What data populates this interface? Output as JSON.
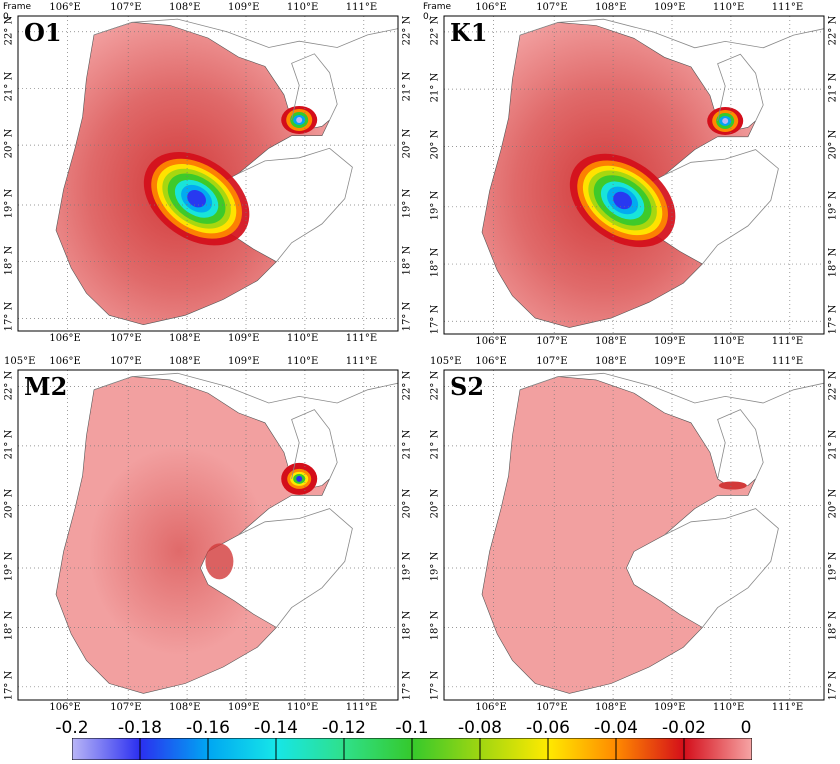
{
  "frame_label": "Frame 0,",
  "lon_labels": [
    "105°E",
    "106°E",
    "107°E",
    "108°E",
    "109°E",
    "110°E",
    "111°E"
  ],
  "lat_labels": [
    "17° N",
    "18° N",
    "19° N",
    "20° N",
    "21° N",
    "22° N"
  ],
  "panels": [
    {
      "title": "O1",
      "frame": true,
      "top_first_lon": false,
      "magnitude": "high"
    },
    {
      "title": "K1",
      "frame": true,
      "top_first_lon": false,
      "magnitude": "high"
    },
    {
      "title": "M2",
      "frame": false,
      "top_first_lon": true,
      "magnitude": "medium"
    },
    {
      "title": "S2",
      "frame": false,
      "top_first_lon": true,
      "magnitude": "low"
    }
  ],
  "colorbar": {
    "labels": [
      "-0.2",
      "-0.18",
      "-0.16",
      "-0.14",
      "-0.12",
      "-0.1",
      "-0.08",
      "-0.06",
      "-0.04",
      "-0.02",
      "0"
    ],
    "colors": [
      "#b9b6f6",
      "#2b2ff0",
      "#00a6f2",
      "#16e6e8",
      "#2fe08a",
      "#35c92c",
      "#9fd611",
      "#ffea00",
      "#ff8a00",
      "#d40e1a",
      "#f6a5a5"
    ]
  },
  "colors": {
    "land": "#ffffff",
    "sea_base": "#f2a0a0",
    "sea_mid": "#e06a6a",
    "sea_dark": "#d23a3a",
    "grid": "#777777",
    "coast": "#8a8a8a"
  }
}
